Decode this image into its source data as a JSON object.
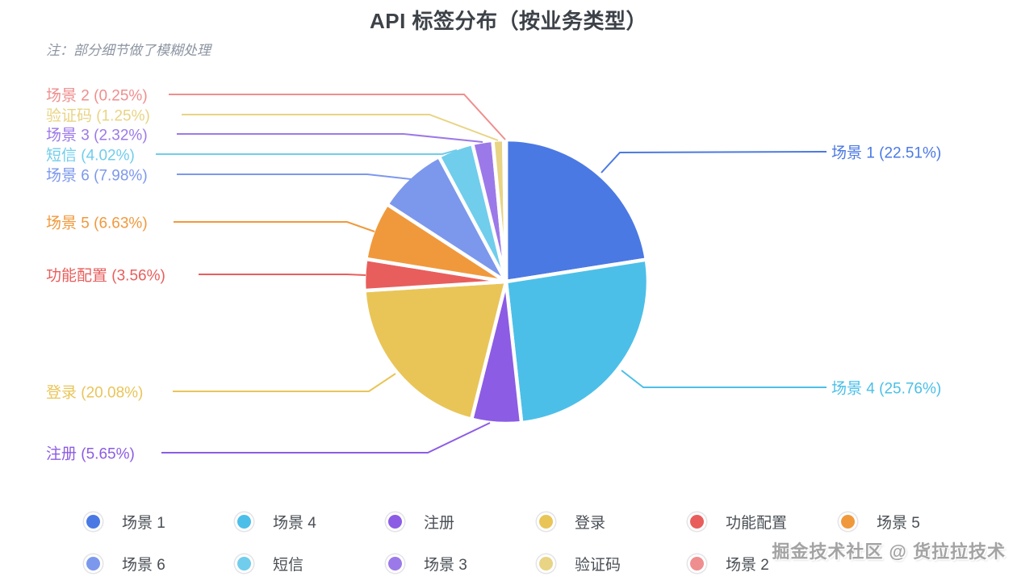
{
  "title": "API 标签分布（按业务类型）",
  "note": "注：部分细节做了模糊处理",
  "watermark": "掘金技术社区 @ 货拉拉技术",
  "chart_data": {
    "type": "pie",
    "title": "API 标签分布（按业务类型）",
    "unit": "percent",
    "start_angle": "12-oclock",
    "direction": "clockwise",
    "legend_position": "bottom",
    "slices": [
      {
        "name": "场景 1",
        "value": 22.51,
        "label": "场景 1 (22.51%)",
        "color": "#4b79e3"
      },
      {
        "name": "场景 4",
        "value": 25.76,
        "label": "场景 4 (25.76%)",
        "color": "#4cbfe8"
      },
      {
        "name": "注册",
        "value": 5.65,
        "label": "注册 (5.65%)",
        "color": "#8c5ce4"
      },
      {
        "name": "登录",
        "value": 20.08,
        "label": "登录 (20.08%)",
        "color": "#e9c558"
      },
      {
        "name": "功能配置",
        "value": 3.56,
        "label": "功能配置 (3.56%)",
        "color": "#e85e5c"
      },
      {
        "name": "场景 5",
        "value": 6.63,
        "label": "场景 5 (6.63%)",
        "color": "#f0993c"
      },
      {
        "name": "场景 6",
        "value": 7.98,
        "label": "场景 6 (7.98%)",
        "color": "#7c98ec"
      },
      {
        "name": "短信",
        "value": 4.02,
        "label": "短信 (4.02%)",
        "color": "#70cdec"
      },
      {
        "name": "场景 3",
        "value": 2.32,
        "label": "场景 3 (2.32%)",
        "color": "#9c79e8"
      },
      {
        "name": "验证码",
        "value": 1.25,
        "label": "验证码 (1.25%)",
        "color": "#e8d484"
      },
      {
        "name": "场景 2",
        "value": 0.25,
        "label": "场景 2 (0.25%)",
        "color": "#ef8e8e"
      }
    ],
    "legend_rows": [
      [
        "场景 1",
        "场景 4",
        "注册",
        "登录",
        "功能配置",
        "场景 5"
      ],
      [
        "场景 6",
        "短信",
        "场景 3",
        "验证码",
        "场景 2"
      ]
    ]
  }
}
